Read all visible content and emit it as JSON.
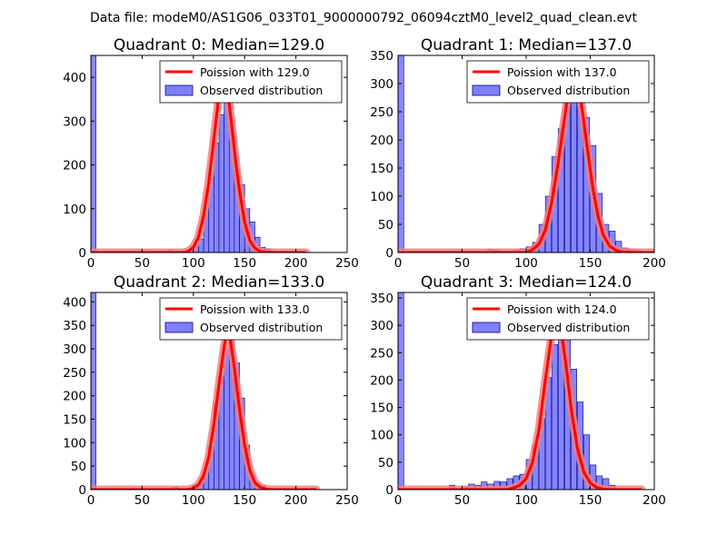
{
  "figure": {
    "suptitle": "Data file: modeM0/AS1G06_033T01_9000000792_06094cztM0_level2_quad_clean.evt",
    "legend_observed_label": "Observed distribution",
    "colors": {
      "poisson": "#ff0000",
      "poisson_halo": "#f08080",
      "bar_fill": "#7f7fff",
      "bar_edge": "#00008b",
      "axes": "#000000",
      "background": "#ffffff"
    }
  },
  "chart_data": [
    {
      "type": "bar",
      "title": "Quadrant 0: Median=129.0",
      "median": 129.0,
      "legend_poisson_label": "Poission with 129.0",
      "xlim": [
        0,
        250
      ],
      "ylim": [
        0,
        450
      ],
      "xticks": [
        0,
        50,
        100,
        150,
        200,
        250
      ],
      "yticks": [
        0,
        100,
        200,
        300,
        400
      ],
      "bin_width": 5,
      "bins": [
        [
          0,
          450
        ],
        [
          75,
          6
        ],
        [
          95,
          4
        ],
        [
          100,
          18
        ],
        [
          105,
          30
        ],
        [
          110,
          100
        ],
        [
          115,
          170
        ],
        [
          120,
          250
        ],
        [
          125,
          315
        ],
        [
          130,
          350
        ],
        [
          135,
          290
        ],
        [
          140,
          190
        ],
        [
          145,
          155
        ],
        [
          150,
          100
        ],
        [
          155,
          70
        ],
        [
          160,
          35
        ],
        [
          165,
          12
        ],
        [
          170,
          8
        ],
        [
          175,
          3
        ]
      ],
      "poisson_x": [
        0,
        90,
        95,
        100,
        105,
        110,
        115,
        120,
        125,
        129,
        133,
        137,
        141,
        145,
        150,
        155,
        160,
        165,
        170,
        180,
        210
      ],
      "poisson_y": [
        0,
        0,
        3,
        12,
        35,
        85,
        160,
        260,
        360,
        405,
        380,
        300,
        215,
        140,
        70,
        28,
        10,
        3,
        1,
        0,
        0
      ]
    },
    {
      "type": "bar",
      "title": "Quadrant 1: Median=137.0",
      "median": 137.0,
      "legend_poisson_label": "Poission with 137.0",
      "xlim": [
        0,
        200
      ],
      "ylim": [
        0,
        350
      ],
      "xticks": [
        0,
        50,
        100,
        150,
        200
      ],
      "yticks": [
        0,
        50,
        100,
        150,
        200,
        250,
        300,
        350
      ],
      "bin_width": 4.5,
      "bins": [
        [
          0,
          350
        ],
        [
          70,
          6
        ],
        [
          75,
          4
        ],
        [
          90,
          4
        ],
        [
          95,
          7
        ],
        [
          100,
          10
        ],
        [
          105,
          18
        ],
        [
          110,
          50
        ],
        [
          115,
          100
        ],
        [
          120,
          170
        ],
        [
          125,
          220
        ],
        [
          130,
          280
        ],
        [
          135,
          330
        ],
        [
          140,
          275
        ],
        [
          145,
          240
        ],
        [
          150,
          190
        ],
        [
          155,
          105
        ],
        [
          160,
          50
        ],
        [
          165,
          38
        ],
        [
          170,
          20
        ],
        [
          175,
          8
        ],
        [
          180,
          5
        ],
        [
          185,
          4
        ]
      ],
      "poisson_x": [
        0,
        100,
        105,
        110,
        115,
        120,
        125,
        130,
        134,
        137,
        140,
        144,
        148,
        152,
        156,
        160,
        165,
        170,
        175,
        185,
        200
      ],
      "poisson_y": [
        0,
        0,
        5,
        15,
        40,
        90,
        160,
        240,
        300,
        322,
        305,
        250,
        180,
        115,
        65,
        32,
        12,
        4,
        1,
        0,
        0
      ]
    },
    {
      "type": "bar",
      "title": "Quadrant 2: Median=133.0",
      "median": 133.0,
      "legend_poisson_label": "Poission with 133.0",
      "xlim": [
        0,
        250
      ],
      "ylim": [
        0,
        420
      ],
      "xticks": [
        0,
        50,
        100,
        150,
        200,
        250
      ],
      "yticks": [
        0,
        50,
        100,
        150,
        200,
        250,
        300,
        350,
        400
      ],
      "bin_width": 5,
      "bins": [
        [
          0,
          420
        ],
        [
          80,
          5
        ],
        [
          100,
          8
        ],
        [
          105,
          15
        ],
        [
          110,
          35
        ],
        [
          115,
          90
        ],
        [
          120,
          185
        ],
        [
          125,
          240
        ],
        [
          130,
          300
        ],
        [
          135,
          330
        ],
        [
          140,
          270
        ],
        [
          145,
          195
        ],
        [
          150,
          95
        ],
        [
          155,
          30
        ],
        [
          160,
          15
        ],
        [
          165,
          8
        ],
        [
          170,
          3
        ]
      ],
      "poisson_x": [
        0,
        95,
        100,
        105,
        110,
        115,
        120,
        125,
        130,
        133,
        136,
        140,
        145,
        150,
        155,
        160,
        165,
        170,
        175,
        185,
        220
      ],
      "poisson_y": [
        0,
        0,
        3,
        10,
        30,
        70,
        140,
        225,
        305,
        335,
        320,
        260,
        170,
        95,
        42,
        15,
        5,
        2,
        0,
        0,
        0
      ]
    },
    {
      "type": "bar",
      "title": "Quadrant 3: Median=124.0",
      "median": 124.0,
      "legend_poisson_label": "Poission with 124.0",
      "xlim": [
        0,
        200
      ],
      "ylim": [
        0,
        360
      ],
      "xticks": [
        0,
        50,
        100,
        150,
        200
      ],
      "yticks": [
        0,
        50,
        100,
        150,
        200,
        250,
        300,
        350
      ],
      "bin_width": 4.5,
      "bins": [
        [
          0,
          360
        ],
        [
          40,
          8
        ],
        [
          50,
          5
        ],
        [
          55,
          10
        ],
        [
          60,
          8
        ],
        [
          65,
          14
        ],
        [
          70,
          10
        ],
        [
          75,
          15
        ],
        [
          80,
          14
        ],
        [
          85,
          20
        ],
        [
          90,
          25
        ],
        [
          95,
          28
        ],
        [
          100,
          55
        ],
        [
          105,
          80
        ],
        [
          110,
          130
        ],
        [
          115,
          205
        ],
        [
          120,
          265
        ],
        [
          125,
          330
        ],
        [
          130,
          300
        ],
        [
          135,
          220
        ],
        [
          140,
          160
        ],
        [
          145,
          100
        ],
        [
          150,
          45
        ],
        [
          155,
          25
        ],
        [
          160,
          20
        ],
        [
          165,
          8
        ]
      ],
      "poisson_x": [
        0,
        85,
        90,
        95,
        100,
        105,
        110,
        115,
        120,
        124,
        127,
        131,
        135,
        140,
        145,
        150,
        155,
        160,
        165,
        175,
        190
      ],
      "poisson_y": [
        0,
        0,
        3,
        8,
        20,
        50,
        110,
        200,
        285,
        318,
        295,
        230,
        150,
        75,
        32,
        12,
        4,
        1,
        0,
        0,
        0
      ]
    }
  ]
}
